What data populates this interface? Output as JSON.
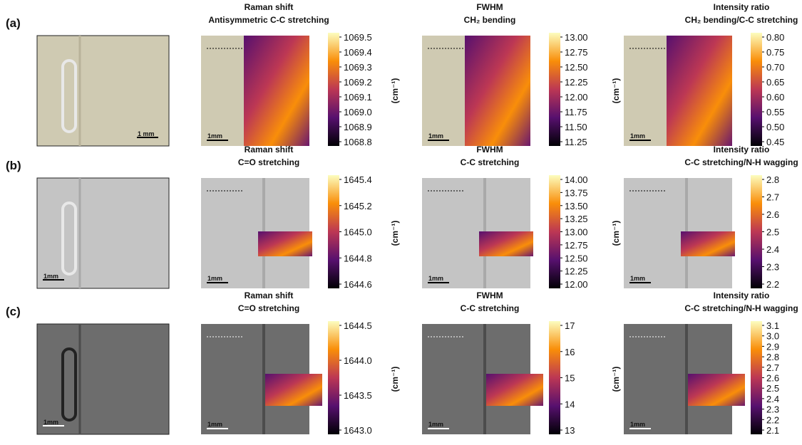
{
  "rows": [
    {
      "label": "(a)",
      "photo_scale": "1 mm",
      "maps": [
        {
          "title": [
            "Raman shift",
            "Antisymmetric C-C stretching"
          ],
          "scale": "1mm",
          "unit": "(cm⁻¹)",
          "ticks": [
            "1069.5",
            "1069.4",
            "1069.3",
            "1069.2",
            "1069.1",
            "1069.0",
            "1068.9",
            "1068.8"
          ]
        },
        {
          "title": [
            "FWHM",
            "CH₂ bending"
          ],
          "scale": "1mm",
          "unit": "(cm⁻¹)",
          "ticks": [
            "13.00",
            "12.75",
            "12.50",
            "12.25",
            "12.00",
            "11.75",
            "11.50",
            "11.25"
          ]
        },
        {
          "title": [
            "Intensity ratio",
            "CH₂ bending/C-C stretching"
          ],
          "scale": "1mm",
          "ticks": [
            "0.80",
            "0.75",
            "0.70",
            "0.65",
            "0.60",
            "0.55",
            "0.50",
            "0.45"
          ]
        }
      ]
    },
    {
      "label": "(b)",
      "photo_scale": "1mm",
      "maps": [
        {
          "title": [
            "Raman shift",
            "C=O stretching"
          ],
          "scale": "1mm",
          "unit": "(cm⁻¹)",
          "ticks": [
            "1645.4",
            "1645.2",
            "1645.0",
            "1644.8",
            "1644.6"
          ]
        },
        {
          "title": [
            "FWHM",
            "C-C stretching"
          ],
          "scale": "1mm",
          "unit": "(cm⁻¹)",
          "ticks": [
            "14.00",
            "13.75",
            "13.50",
            "13.25",
            "13.00",
            "12.75",
            "12.50",
            "12.25",
            "12.00"
          ]
        },
        {
          "title": [
            "Intensity ratio",
            "C-C stretching/N-H wagging"
          ],
          "scale": "1mm",
          "ticks": [
            "2.8",
            "2.7",
            "2.6",
            "2.5",
            "2.4",
            "2.3",
            "2.2"
          ]
        }
      ]
    },
    {
      "label": "(c)",
      "photo_scale": "1mm",
      "maps": [
        {
          "title": [
            "Raman shift",
            "C=O stretching"
          ],
          "scale": "1mm",
          "unit": "(cm⁻¹)",
          "ticks": [
            "1644.5",
            "1644.0",
            "1643.5",
            "1643.0"
          ]
        },
        {
          "title": [
            "FWHM",
            "C-C stretching"
          ],
          "scale": "1mm",
          "unit": "(cm⁻¹)",
          "ticks": [
            "17",
            "16",
            "15",
            "14",
            "13"
          ]
        },
        {
          "title": [
            "Intensity ratio",
            "C-C stretching/N-H wagging"
          ],
          "scale": "1mm",
          "ticks": [
            "3.1",
            "3.0",
            "2.9",
            "2.8",
            "2.7",
            "2.6",
            "2.5",
            "2.4",
            "2.3",
            "2.2",
            "2.1"
          ]
        }
      ]
    }
  ]
}
